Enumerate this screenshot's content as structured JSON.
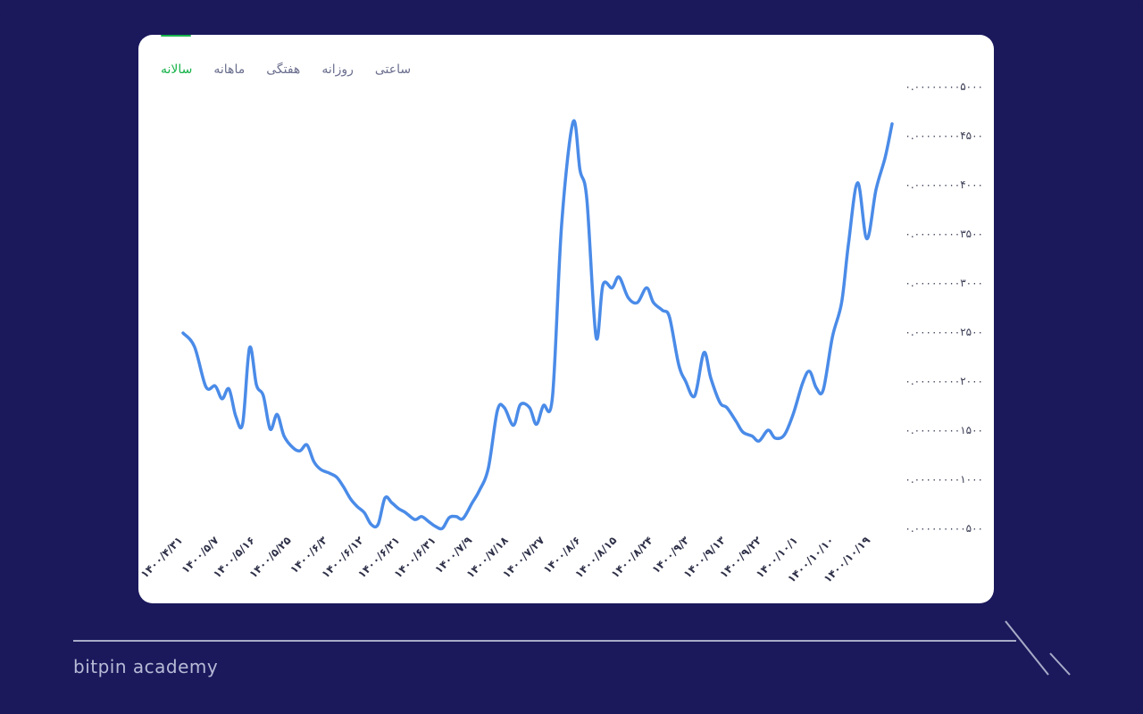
{
  "tabs": [
    {
      "label": "ساعتی",
      "active": false
    },
    {
      "label": "روزانه",
      "active": false
    },
    {
      "label": "هفتگی",
      "active": false
    },
    {
      "label": "ماهانه",
      "active": false
    },
    {
      "label": "سالانه",
      "active": true
    }
  ],
  "brand": "bitpin academy",
  "colors": {
    "background": "#1b195c",
    "card": "#ffffff",
    "line": "#4a8be8",
    "active_tab": "#17b34a",
    "tab": "#6b6f8e"
  },
  "chart_data": {
    "type": "line",
    "title": "",
    "xlabel": "",
    "ylabel": "",
    "ylim": [
      5e-10,
      5e-09
    ],
    "y_ticks": [
      "۰.۰۰۰۰۰۰۰۰۵۰۰۰",
      "۰.۰۰۰۰۰۰۰۰۴۵۰۰",
      "۰.۰۰۰۰۰۰۰۰۴۰۰۰",
      "۰.۰۰۰۰۰۰۰۰۳۵۰۰",
      "۰.۰۰۰۰۰۰۰۰۳۰۰۰",
      "۰.۰۰۰۰۰۰۰۰۲۵۰۰",
      "۰.۰۰۰۰۰۰۰۰۲۰۰۰",
      "۰.۰۰۰۰۰۰۰۰۱۵۰۰",
      "۰.۰۰۰۰۰۰۰۰۱۰۰۰",
      "۰.۰۰۰۰۰۰۰۰۰۵۰۰"
    ],
    "x_ticks": [
      "۱۴۰۰/۴/۳۱",
      "۱۴۰۰/۵/۷",
      "۱۴۰۰/۵/۱۶",
      "۱۴۰۰/۵/۲۵",
      "۱۴۰۰/۶/۳",
      "۱۴۰۰/۶/۱۲",
      "۱۴۰۰/۶/۲۱",
      "۱۴۰۰/۶/۳۱",
      "۱۴۰۰/۷/۹",
      "۱۴۰۰/۷/۱۸",
      "۱۴۰۰/۷/۲۷",
      "۱۴۰۰/۸/۶",
      "۱۴۰۰/۸/۱۵",
      "۱۴۰۰/۸/۲۴",
      "۱۴۰۰/۹/۳",
      "۱۴۰۰/۹/۱۳",
      "۱۴۰۰/۹/۲۲",
      "۱۴۰۰/۱۰/۱",
      "۱۴۰۰/۱۰/۱۰",
      "۱۴۰۰/۱۰/۱۹"
    ],
    "series": [
      {
        "values": [
          [
            0.0,
            2.49e-09
          ],
          [
            0.5,
            2.35e-09
          ],
          [
            1.0,
            1.94e-09
          ],
          [
            1.4,
            1.95e-09
          ],
          [
            1.7,
            1.82e-09
          ],
          [
            2.0,
            1.92e-09
          ],
          [
            2.3,
            1.64e-09
          ],
          [
            2.6,
            1.57e-09
          ],
          [
            2.9,
            2.34e-09
          ],
          [
            3.2,
            1.96e-09
          ],
          [
            3.5,
            1.85e-09
          ],
          [
            3.8,
            1.51e-09
          ],
          [
            4.1,
            1.66e-09
          ],
          [
            4.4,
            1.44e-09
          ],
          [
            4.8,
            1.32e-09
          ],
          [
            5.1,
            1.29e-09
          ],
          [
            5.4,
            1.35e-09
          ],
          [
            5.7,
            1.18e-09
          ],
          [
            6.0,
            1.1e-09
          ],
          [
            6.4,
            1.06e-09
          ],
          [
            6.7,
            1.02e-09
          ],
          [
            7.0,
            9.2e-10
          ],
          [
            7.3,
            8e-10
          ],
          [
            7.6,
            7.2e-10
          ],
          [
            7.9,
            6.6e-10
          ],
          [
            8.2,
            5.4e-10
          ],
          [
            8.5,
            5.4e-10
          ],
          [
            8.8,
            8.1e-10
          ],
          [
            9.1,
            7.6e-10
          ],
          [
            9.4,
            7e-10
          ],
          [
            9.7,
            6.6e-10
          ],
          [
            10.1,
            5.9e-10
          ],
          [
            10.4,
            6.2e-10
          ],
          [
            10.7,
            5.7e-10
          ],
          [
            11.0,
            5.2e-10
          ],
          [
            11.3,
            5e-10
          ],
          [
            11.6,
            6.1e-10
          ],
          [
            11.9,
            6.2e-10
          ],
          [
            12.2,
            6e-10
          ],
          [
            12.6,
            7.6e-10
          ],
          [
            12.9,
            8.8e-10
          ],
          [
            13.3,
            1.11e-09
          ],
          [
            13.7,
            1.7e-09
          ],
          [
            14.0,
            1.73e-09
          ],
          [
            14.4,
            1.55e-09
          ],
          [
            14.7,
            1.76e-09
          ],
          [
            15.1,
            1.73e-09
          ],
          [
            15.4,
            1.56e-09
          ],
          [
            15.7,
            1.75e-09
          ],
          [
            16.1,
            1.84e-09
          ],
          [
            16.5,
            3.6e-09
          ],
          [
            17.0,
            4.64e-09
          ],
          [
            17.3,
            4.15e-09
          ],
          [
            17.6,
            3.85e-09
          ],
          [
            18.0,
            2.45e-09
          ],
          [
            18.3,
            2.98e-09
          ],
          [
            18.7,
            2.95e-09
          ],
          [
            19.0,
            3.06e-09
          ],
          [
            19.4,
            2.85e-09
          ],
          [
            19.8,
            2.8e-09
          ],
          [
            20.2,
            2.95e-09
          ],
          [
            20.5,
            2.8e-09
          ],
          [
            20.9,
            2.72e-09
          ],
          [
            21.2,
            2.65e-09
          ],
          [
            21.6,
            2.17e-09
          ],
          [
            21.9,
            2e-09
          ],
          [
            22.3,
            1.85e-09
          ],
          [
            22.7,
            2.29e-09
          ],
          [
            23.0,
            2.03e-09
          ],
          [
            23.4,
            1.78e-09
          ],
          [
            23.7,
            1.73e-09
          ],
          [
            24.1,
            1.59e-09
          ],
          [
            24.4,
            1.48e-09
          ],
          [
            24.8,
            1.44e-09
          ],
          [
            25.1,
            1.39e-09
          ],
          [
            25.5,
            1.5e-09
          ],
          [
            25.8,
            1.42e-09
          ],
          [
            26.2,
            1.45e-09
          ],
          [
            26.6,
            1.67e-09
          ],
          [
            27.0,
            1.98e-09
          ],
          [
            27.3,
            2.1e-09
          ],
          [
            27.6,
            1.93e-09
          ],
          [
            27.9,
            1.91e-09
          ],
          [
            28.3,
            2.45e-09
          ],
          [
            28.7,
            2.8e-09
          ],
          [
            29.0,
            3.4e-09
          ],
          [
            29.4,
            4.02e-09
          ],
          [
            29.8,
            3.45e-09
          ],
          [
            30.2,
            3.95e-09
          ],
          [
            30.6,
            4.28e-09
          ],
          [
            30.9,
            4.62e-09
          ]
        ]
      }
    ],
    "x_range": [
      0,
      30.9
    ],
    "legend": "none",
    "grid": false
  }
}
